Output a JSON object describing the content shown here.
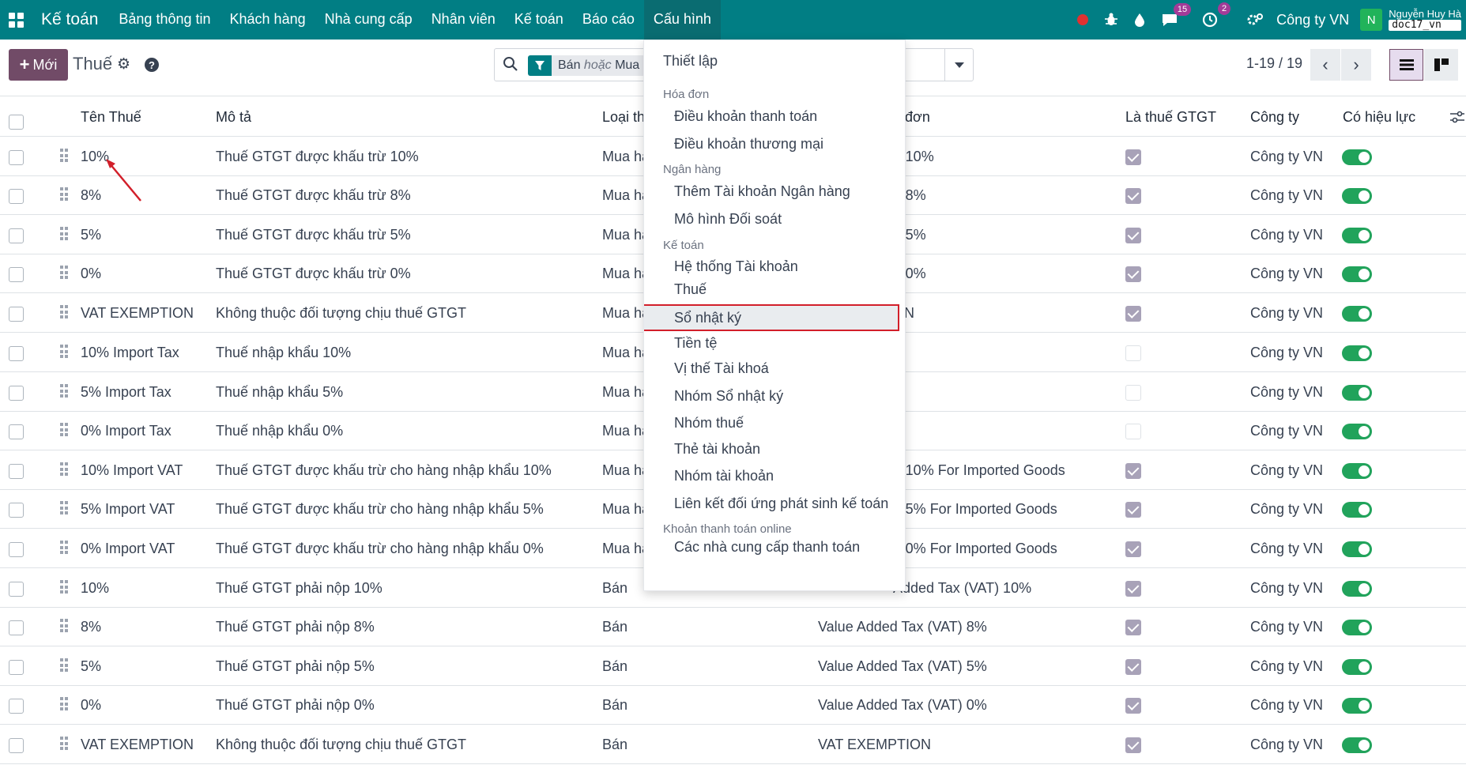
{
  "navbar": {
    "brand": "Kế toán",
    "menu": [
      "Bảng thông tin",
      "Khách hàng",
      "Nhà cung cấp",
      "Nhân viên",
      "Kế toán",
      "Báo cáo",
      "Cấu hình"
    ],
    "active_menu": "Cấu hình",
    "chat_count": "15",
    "activity_count": "2",
    "company": "Công ty VN",
    "avatar_letter": "N",
    "user_name": "Nguyễn Huy Hà",
    "db_name": "doc17_vn"
  },
  "control": {
    "new_label": "Mới",
    "title": "Thuế",
    "facet_prefix": "Bán",
    "facet_or": "hoặc",
    "facet_suffix": "Mua",
    "pager": "1-19 / 19"
  },
  "table": {
    "headers": {
      "name": "Tên Thuế",
      "description": "Mô tả",
      "type": "Loại th",
      "invoice_label": "á đơn",
      "is_vat": "Là thuế GTGT",
      "company": "Công ty",
      "active": "Có hiệu lực"
    },
    "rows": [
      {
        "name": "10%",
        "desc": "Thuế GTGT được khấu trừ 10%",
        "type": "Mua hà",
        "label": "T 10%",
        "vat": true,
        "company": "Công ty VN"
      },
      {
        "name": "8%",
        "desc": "Thuế GTGT được khấu trừ 8%",
        "type": "Mua hà",
        "label": "T 8%",
        "vat": true,
        "company": "Công ty VN"
      },
      {
        "name": "5%",
        "desc": "Thuế GTGT được khấu trừ 5%",
        "type": "Mua hà",
        "label": "T 5%",
        "vat": true,
        "company": "Công ty VN"
      },
      {
        "name": "0%",
        "desc": "Thuế GTGT được khấu trừ 0%",
        "type": "Mua hà",
        "label": "T 0%",
        "vat": true,
        "company": "Công ty VN"
      },
      {
        "name": "VAT EXEMPTION",
        "desc": "Không thuộc đối tượng chịu thuế GTGT",
        "type": "Mua hà",
        "label": "ON",
        "vat": true,
        "company": "Công ty VN"
      },
      {
        "name": "10% Import Tax",
        "desc": "Thuế nhập khẩu 10%",
        "type": "Mua hà",
        "label": "%",
        "vat": false,
        "company": "Công ty VN"
      },
      {
        "name": "5% Import Tax",
        "desc": "Thuế nhập khẩu 5%",
        "type": "Mua hà",
        "label": "",
        "vat": false,
        "company": "Công ty VN"
      },
      {
        "name": "0% Import Tax",
        "desc": "Thuế nhập khẩu 0%",
        "type": "Mua hà",
        "label": "",
        "vat": false,
        "company": "Công ty VN"
      },
      {
        "name": "10% Import VAT",
        "desc": "Thuế GTGT được khấu trừ cho hàng nhập khẩu 10%",
        "type": "Mua hà",
        "label": "T 10% For Imported Goods",
        "vat": true,
        "company": "Công ty VN"
      },
      {
        "name": "5% Import VAT",
        "desc": "Thuế GTGT được khấu trừ cho hàng nhập khẩu 5%",
        "type": "Mua hà",
        "label": "T 5% For Imported Goods",
        "vat": true,
        "company": "Công ty VN"
      },
      {
        "name": "0% Import VAT",
        "desc": "Thuế GTGT được khấu trừ cho hàng nhập khẩu 0%",
        "type": "Mua hà",
        "label": "T 0% For Imported Goods",
        "vat": true,
        "company": "Công ty VN"
      },
      {
        "name": "10%",
        "desc": "Thuế GTGT phải nộp 10%",
        "type": "Bán",
        "label": "Added Tax (VAT) 10%",
        "vat": true,
        "company": "Công ty VN"
      },
      {
        "name": "8%",
        "desc": "Thuế GTGT phải nộp 8%",
        "type": "Bán",
        "label": "Value Added Tax (VAT) 8%",
        "vat": true,
        "company": "Công ty VN"
      },
      {
        "name": "5%",
        "desc": "Thuế GTGT phải nộp 5%",
        "type": "Bán",
        "label": "Value Added Tax (VAT) 5%",
        "vat": true,
        "company": "Công ty VN"
      },
      {
        "name": "0%",
        "desc": "Thuế GTGT phải nộp 0%",
        "type": "Bán",
        "label": "Value Added Tax (VAT) 0%",
        "vat": true,
        "company": "Công ty VN"
      },
      {
        "name": "VAT EXEMPTION",
        "desc": "Không thuộc đối tượng chịu thuế GTGT",
        "type": "Bán",
        "label": "VAT EXEMPTION",
        "vat": true,
        "company": "Công ty VN"
      }
    ]
  },
  "dropdown": {
    "items": [
      {
        "kind": "top",
        "text": "Thiết lập"
      },
      {
        "kind": "head",
        "text": "Hóa đơn"
      },
      {
        "kind": "sub",
        "text": "Điều khoản thanh toán"
      },
      {
        "kind": "sub",
        "text": "Điều khoản thương mại"
      },
      {
        "kind": "head",
        "text": "Ngân hàng"
      },
      {
        "kind": "sub",
        "text": "Thêm Tài khoản Ngân hàng"
      },
      {
        "kind": "sub",
        "text": "Mô hình Đối soát"
      },
      {
        "kind": "head",
        "text": "Kế toán"
      },
      {
        "kind": "sub",
        "text": "Hệ thống Tài khoản"
      },
      {
        "kind": "sub",
        "text": "Thuế",
        "selected": true
      },
      {
        "kind": "sub",
        "text": "Sổ nhật ký"
      },
      {
        "kind": "sub",
        "text": "Tiền tệ"
      },
      {
        "kind": "sub",
        "text": "Vị thế Tài khoá"
      },
      {
        "kind": "sub",
        "text": "Nhóm Sổ nhật ký"
      },
      {
        "kind": "sub",
        "text": "Nhóm thuế"
      },
      {
        "kind": "sub",
        "text": "Thẻ tài khoản"
      },
      {
        "kind": "sub",
        "text": "Nhóm tài khoản"
      },
      {
        "kind": "sub",
        "text": "Liên kết đối ứng phát sinh kế toán"
      },
      {
        "kind": "head",
        "text": "Khoản thanh toán online"
      },
      {
        "kind": "sub",
        "text": "Các nhà cung cấp thanh toán"
      }
    ]
  },
  "colors": {
    "navbar": "#017e84",
    "primary": "#714b67",
    "toggle_on": "#21a35b",
    "highlight_border": "#d21f2a"
  }
}
